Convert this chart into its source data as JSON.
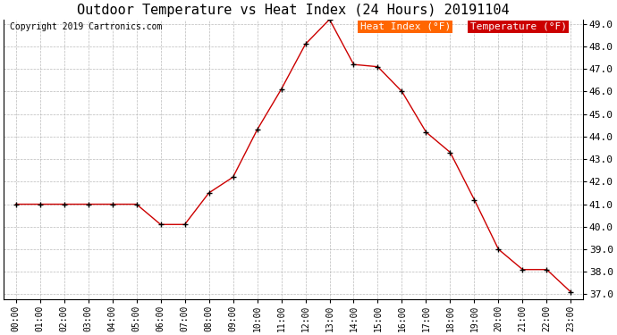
{
  "title": "Outdoor Temperature vs Heat Index (24 Hours) 20191104",
  "copyright": "Copyright 2019 Cartronics.com",
  "hours": [
    0,
    1,
    2,
    3,
    4,
    5,
    6,
    7,
    8,
    9,
    10,
    11,
    12,
    13,
    14,
    15,
    16,
    17,
    18,
    19,
    20,
    21,
    22,
    23
  ],
  "temperature": [
    41.0,
    41.0,
    41.0,
    41.0,
    41.0,
    41.0,
    40.1,
    40.1,
    41.5,
    42.2,
    44.3,
    46.1,
    48.1,
    49.2,
    47.2,
    47.1,
    46.0,
    44.2,
    43.3,
    41.2,
    39.0,
    38.1,
    38.1,
    37.1
  ],
  "ylim": [
    37.0,
    49.0
  ],
  "yticks": [
    37.0,
    38.0,
    39.0,
    40.0,
    41.0,
    42.0,
    43.0,
    44.0,
    45.0,
    46.0,
    47.0,
    48.0,
    49.0
  ],
  "line_color": "#cc0000",
  "marker_color": "#000000",
  "bg_color": "#ffffff",
  "grid_color": "#aaaaaa",
  "title_fontsize": 11,
  "title_fontfamily": "monospace",
  "legend_heat_index_bg": "#ff6600",
  "legend_temp_bg": "#cc0000",
  "legend_text_color": "#ffffff",
  "legend_fontsize": 8,
  "copyright_fontsize": 7,
  "tick_fontsize": 7,
  "ytick_fontsize": 8
}
